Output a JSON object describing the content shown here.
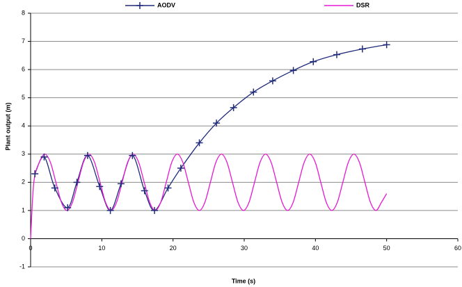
{
  "chart_data": {
    "type": "line",
    "xlabel": "Time (s)",
    "ylabel": "Plant output (m)",
    "xlim": [
      0,
      60
    ],
    "xticks": [
      0,
      10,
      20,
      30,
      40,
      50,
      60
    ],
    "ylim": [
      -1,
      8
    ],
    "yticks": [
      -1,
      0,
      1,
      2,
      3,
      4,
      5,
      6,
      7,
      8
    ],
    "grid": true,
    "legend": "top",
    "series": [
      {
        "name": "AODV",
        "color": "#1f2a7a",
        "marker": "+",
        "x": [
          0.6,
          1.9,
          3.4,
          5.2,
          6.5,
          8,
          9.7,
          11.2,
          12.7,
          14.3,
          16,
          17.4,
          19.3,
          21.1,
          23.7,
          26.1,
          28.5,
          31.3,
          34,
          36.9,
          39.7,
          43,
          46.6,
          50
        ],
        "values": [
          2.3,
          2.9,
          1.8,
          1.1,
          2.0,
          2.95,
          1.85,
          1.0,
          1.95,
          2.95,
          1.7,
          1.0,
          1.8,
          2.5,
          3.4,
          4.1,
          4.65,
          5.2,
          5.6,
          5.97,
          6.28,
          6.53,
          6.73,
          6.88
        ]
      },
      {
        "name": "DSR",
        "color": "#e619d2",
        "marker": "none",
        "x": [
          0,
          0.45,
          1.225,
          2,
          2.775,
          3.55,
          4.325,
          5.1,
          5.875,
          6.65,
          7.425,
          8.2,
          8.975,
          9.75,
          10.525,
          11.3,
          12.075,
          12.85,
          13.625,
          14.4,
          15.175,
          15.95,
          16.725,
          17.5,
          18.275,
          19.05,
          19.825,
          20.6,
          21.375,
          22.15,
          22.925,
          23.7,
          24.475,
          25.25,
          26.025,
          26.8,
          27.575,
          28.35,
          29.125,
          29.9,
          30.675,
          31.45,
          32.225,
          33,
          33.775,
          34.55,
          35.325,
          36.1,
          36.875,
          37.65,
          38.425,
          39.2,
          39.975,
          40.75,
          41.525,
          42.3,
          43.075,
          43.85,
          44.625,
          45.4,
          46.175,
          46.95,
          47.725,
          48.5,
          49.275,
          50
        ],
        "values": [
          0,
          2,
          2.71,
          3,
          2.71,
          2,
          1.29,
          1,
          1.29,
          2,
          2.71,
          3,
          2.71,
          2,
          1.29,
          1,
          1.29,
          2,
          2.71,
          3,
          2.71,
          2,
          1.29,
          1,
          1.29,
          2,
          2.71,
          3,
          2.71,
          2,
          1.29,
          1,
          1.29,
          2,
          2.71,
          3,
          2.71,
          2,
          1.29,
          1,
          1.29,
          2,
          2.71,
          3,
          2.71,
          2,
          1.29,
          1,
          1.29,
          2,
          2.71,
          3,
          2.71,
          2,
          1.29,
          1,
          1.29,
          2,
          2.71,
          3,
          2.71,
          2,
          1.29,
          1,
          1.29,
          1.6
        ]
      }
    ]
  }
}
